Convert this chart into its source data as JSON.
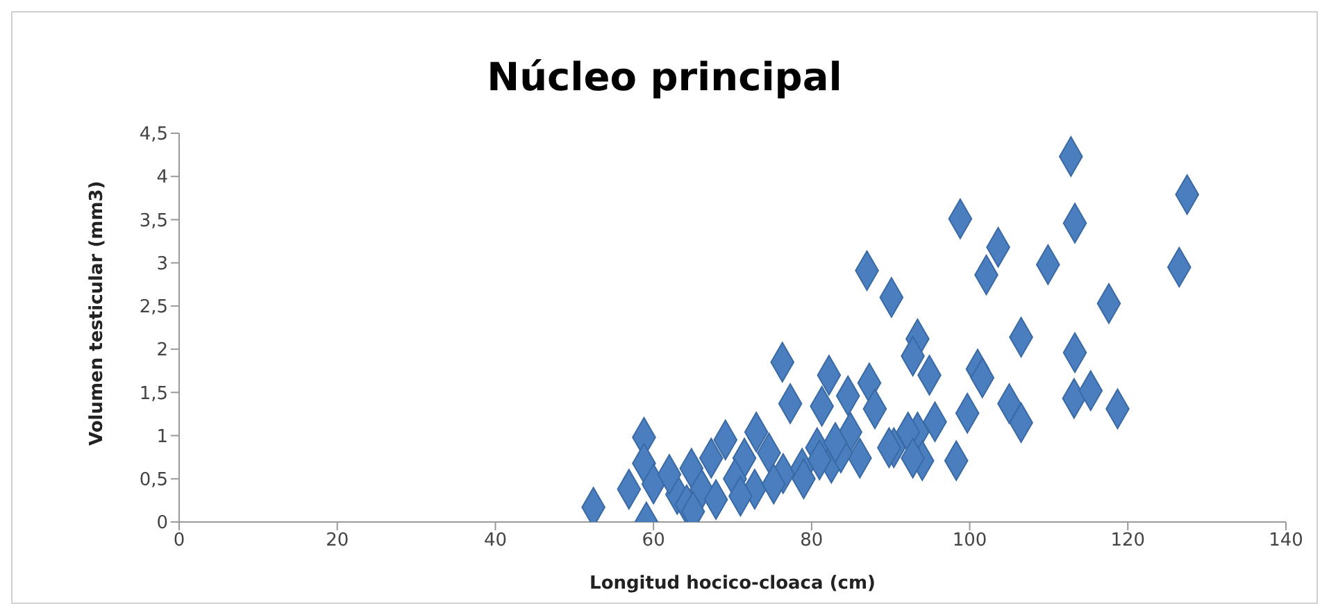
{
  "chart_data": {
    "type": "scatter",
    "title": "Núcleo principal",
    "xlabel": "Longitud hocico-cloaca (cm)",
    "ylabel": "Volumen testicular (mm3)",
    "x": [
      112.8,
      127.5,
      98.8,
      113.3,
      103.6,
      109.9,
      102.1,
      126.5,
      117.6,
      90.1,
      106.5,
      113.3,
      93.4,
      92.8,
      101,
      101.6,
      94.9,
      113.2,
      115.3,
      118.7,
      105,
      106.5,
      99.7,
      95.6,
      93.4,
      90.4,
      94,
      98.3,
      87,
      76.3,
      82.2,
      87.3,
      77.3,
      81.3,
      84.6,
      88,
      73,
      69.1,
      58.8,
      84.9,
      89.8,
      80.7,
      74.6,
      71.5,
      67.3,
      64.8,
      58.8,
      56.9,
      60,
      52.4,
      59.1,
      63,
      66.1,
      70.3,
      72.8,
      76.4,
      78.8,
      82.5,
      86.1,
      64.2,
      67.9,
      75.2,
      83.7,
      92.2,
      92.8,
      62,
      65,
      71,
      79,
      81,
      83
    ],
    "values": [
      4.23,
      3.79,
      3.51,
      3.46,
      3.18,
      2.98,
      2.86,
      2.95,
      2.53,
      2.6,
      2.14,
      1.96,
      2.12,
      1.92,
      1.77,
      1.67,
      1.7,
      1.43,
      1.52,
      1.31,
      1.37,
      1.15,
      1.26,
      1.16,
      1.04,
      0.86,
      0.71,
      0.71,
      2.91,
      1.85,
      1.7,
      1.61,
      1.37,
      1.34,
      1.46,
      1.31,
      1.04,
      0.95,
      0.98,
      1.04,
      0.86,
      0.86,
      0.8,
      0.74,
      0.74,
      0.62,
      0.68,
      0.38,
      0.44,
      0.17,
      0.0,
      0.32,
      0.38,
      0.5,
      0.38,
      0.56,
      0.62,
      0.68,
      0.74,
      0.2,
      0.26,
      0.44,
      0.8,
      1.04,
      0.74,
      0.55,
      0.12,
      0.3,
      0.5,
      0.72,
      0.92
    ],
    "color": "#4a7ebf",
    "marker": "diamond",
    "grid": false,
    "legend": false,
    "xlim": [
      0,
      140
    ],
    "xticks": [
      0,
      20,
      40,
      60,
      80,
      100,
      120,
      140
    ],
    "ylim": [
      0,
      4.5
    ],
    "yticks": [
      0,
      {
        "value": 0.5,
        "label": "0,5"
      },
      1,
      {
        "value": 1.5,
        "label": "1,5"
      },
      2,
      {
        "value": 2.5,
        "label": "2,5"
      },
      3,
      {
        "value": 3.5,
        "label": "3,5"
      },
      4,
      {
        "value": 4.5,
        "label": "4,5"
      }
    ]
  }
}
